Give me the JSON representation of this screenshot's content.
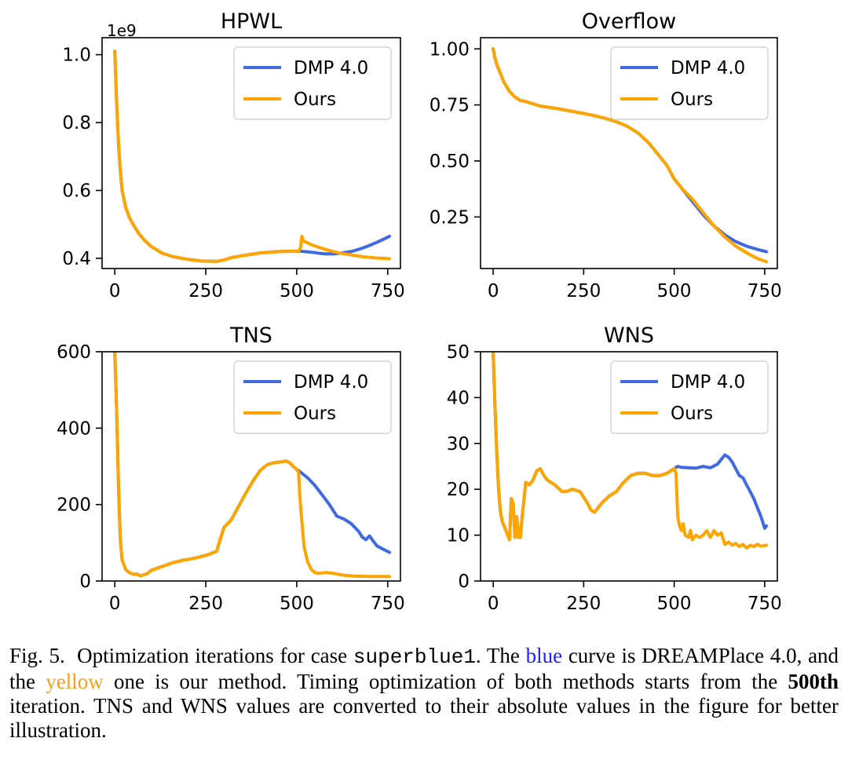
{
  "chart_data": [
    {
      "type": "line",
      "title": "HPWL",
      "xlabel": "",
      "ylabel": "",
      "offset_label": "1e9",
      "xlim": [
        -35,
        785
      ],
      "ylim": [
        0.37,
        1.05
      ],
      "xticks": [
        0,
        250,
        500,
        750
      ],
      "xtick_labels": [
        "0",
        "250",
        "500",
        "750"
      ],
      "yticks": [
        0.4,
        0.6,
        0.8,
        1.0
      ],
      "ytick_labels": [
        "0.4",
        "0.6",
        "0.8",
        "1.0"
      ],
      "legend": "top-right",
      "series": [
        {
          "name": "DMP 4.0",
          "color": "#4169e1",
          "x": [
            0,
            5,
            10,
            15,
            20,
            30,
            40,
            50,
            65,
            80,
            100,
            130,
            160,
            200,
            240,
            280,
            300,
            320,
            350,
            400,
            450,
            500,
            510,
            540,
            560,
            580,
            600,
            620,
            650,
            680,
            700,
            720,
            740,
            755
          ],
          "y": [
            1.01,
            0.86,
            0.74,
            0.66,
            0.6,
            0.55,
            0.52,
            0.5,
            0.475,
            0.455,
            0.435,
            0.415,
            0.405,
            0.397,
            0.392,
            0.391,
            0.395,
            0.402,
            0.408,
            0.416,
            0.42,
            0.421,
            0.421,
            0.418,
            0.415,
            0.413,
            0.413,
            0.415,
            0.42,
            0.43,
            0.438,
            0.447,
            0.457,
            0.465
          ]
        },
        {
          "name": "Ours",
          "color": "#ffa500",
          "x": [
            0,
            5,
            10,
            15,
            20,
            30,
            40,
            50,
            65,
            80,
            100,
            130,
            160,
            200,
            240,
            280,
            300,
            320,
            350,
            400,
            450,
            500,
            505,
            510,
            514,
            518,
            525,
            540,
            560,
            580,
            600,
            620,
            650,
            680,
            700,
            720,
            740,
            755
          ],
          "y": [
            1.01,
            0.86,
            0.74,
            0.66,
            0.6,
            0.55,
            0.52,
            0.5,
            0.475,
            0.455,
            0.435,
            0.415,
            0.405,
            0.397,
            0.392,
            0.391,
            0.395,
            0.402,
            0.408,
            0.416,
            0.42,
            0.421,
            0.42,
            0.43,
            0.465,
            0.452,
            0.448,
            0.44,
            0.433,
            0.426,
            0.42,
            0.415,
            0.41,
            0.405,
            0.403,
            0.401,
            0.4,
            0.399
          ]
        }
      ]
    },
    {
      "type": "line",
      "title": "Overflow",
      "xlabel": "",
      "ylabel": "",
      "xlim": [
        -35,
        785
      ],
      "ylim": [
        0.02,
        1.05
      ],
      "xticks": [
        0,
        250,
        500,
        750
      ],
      "xtick_labels": [
        "0",
        "250",
        "500",
        "750"
      ],
      "yticks": [
        0.25,
        0.5,
        0.75,
        1.0
      ],
      "ytick_labels": [
        "0.25",
        "0.50",
        "0.75",
        "1.00"
      ],
      "legend": "top-right",
      "series": [
        {
          "name": "DMP 4.0",
          "color": "#4169e1",
          "x": [
            0,
            5,
            10,
            20,
            30,
            45,
            60,
            75,
            90,
            110,
            130,
            150,
            180,
            210,
            250,
            280,
            310,
            340,
            370,
            400,
            430,
            460,
            480,
            500,
            520,
            550,
            580,
            610,
            640,
            670,
            700,
            730,
            755
          ],
          "y": [
            1.0,
            0.96,
            0.93,
            0.89,
            0.85,
            0.81,
            0.785,
            0.77,
            0.765,
            0.755,
            0.745,
            0.74,
            0.733,
            0.724,
            0.712,
            0.702,
            0.69,
            0.675,
            0.655,
            0.625,
            0.58,
            0.52,
            0.48,
            0.42,
            0.38,
            0.32,
            0.26,
            0.21,
            0.17,
            0.14,
            0.12,
            0.105,
            0.095
          ]
        },
        {
          "name": "Ours",
          "color": "#ffa500",
          "x": [
            0,
            5,
            10,
            20,
            30,
            45,
            60,
            75,
            90,
            110,
            130,
            150,
            180,
            210,
            250,
            280,
            310,
            340,
            370,
            400,
            430,
            460,
            480,
            500,
            520,
            550,
            580,
            610,
            640,
            670,
            700,
            730,
            755
          ],
          "y": [
            1.0,
            0.96,
            0.93,
            0.89,
            0.85,
            0.81,
            0.785,
            0.77,
            0.765,
            0.755,
            0.745,
            0.74,
            0.733,
            0.724,
            0.712,
            0.702,
            0.69,
            0.675,
            0.655,
            0.625,
            0.58,
            0.52,
            0.48,
            0.42,
            0.38,
            0.33,
            0.27,
            0.21,
            0.16,
            0.12,
            0.09,
            0.065,
            0.05
          ]
        }
      ]
    },
    {
      "type": "line",
      "title": "TNS",
      "xlabel": "",
      "ylabel": "",
      "xlim": [
        -35,
        785
      ],
      "ylim": [
        0,
        600
      ],
      "xticks": [
        0,
        250,
        500,
        750
      ],
      "xtick_labels": [
        "0",
        "250",
        "500",
        "750"
      ],
      "yticks": [
        0,
        200,
        400,
        600
      ],
      "ytick_labels": [
        "0",
        "200",
        "400",
        "600"
      ],
      "legend": "top-right",
      "series": [
        {
          "name": "DMP 4.0",
          "color": "#4169e1",
          "x": [
            0,
            5,
            10,
            15,
            20,
            30,
            40,
            50,
            60,
            70,
            80,
            90,
            100,
            130,
            160,
            190,
            200,
            230,
            260,
            280,
            290,
            300,
            320,
            340,
            360,
            380,
            400,
            420,
            440,
            460,
            470,
            480,
            490,
            500,
            510,
            530,
            550,
            570,
            590,
            610,
            630,
            650,
            670,
            680,
            690,
            700,
            710,
            720,
            740,
            755
          ],
          "y": [
            600,
            450,
            250,
            110,
            55,
            30,
            22,
            18,
            18,
            14,
            16,
            20,
            28,
            38,
            48,
            55,
            56,
            62,
            70,
            78,
            110,
            140,
            160,
            195,
            230,
            262,
            290,
            305,
            310,
            312,
            314,
            310,
            300,
            292,
            285,
            270,
            250,
            225,
            200,
            170,
            162,
            150,
            130,
            115,
            108,
            118,
            105,
            92,
            82,
            75
          ]
        },
        {
          "name": "Ours",
          "color": "#ffa500",
          "x": [
            0,
            5,
            10,
            15,
            20,
            30,
            40,
            50,
            60,
            70,
            80,
            90,
            100,
            130,
            160,
            190,
            200,
            230,
            260,
            280,
            290,
            300,
            320,
            340,
            360,
            380,
            400,
            420,
            440,
            460,
            470,
            480,
            490,
            500,
            505,
            510,
            520,
            530,
            540,
            550,
            560,
            580,
            600,
            630,
            660,
            700,
            755
          ],
          "y": [
            600,
            450,
            250,
            110,
            55,
            30,
            22,
            18,
            18,
            14,
            16,
            20,
            28,
            38,
            48,
            55,
            56,
            62,
            70,
            78,
            110,
            140,
            160,
            195,
            230,
            262,
            290,
            305,
            310,
            312,
            314,
            310,
            300,
            292,
            285,
            200,
            90,
            50,
            30,
            22,
            20,
            22,
            20,
            15,
            13,
            12,
            12
          ]
        }
      ]
    },
    {
      "type": "line",
      "title": "WNS",
      "xlabel": "",
      "ylabel": "",
      "xlim": [
        -35,
        785
      ],
      "ylim": [
        0,
        50
      ],
      "xticks": [
        0,
        250,
        500,
        750
      ],
      "xtick_labels": [
        "0",
        "250",
        "500",
        "750"
      ],
      "yticks": [
        0,
        10,
        20,
        30,
        40,
        50
      ],
      "ytick_labels": [
        "0",
        "10",
        "20",
        "30",
        "40",
        "50"
      ],
      "legend": "top-right",
      "series": [
        {
          "name": "DMP 4.0",
          "color": "#4169e1",
          "x": [
            0,
            5,
            10,
            15,
            20,
            25,
            30,
            35,
            40,
            45,
            50,
            55,
            60,
            65,
            70,
            75,
            80,
            90,
            100,
            110,
            120,
            130,
            140,
            150,
            170,
            190,
            200,
            220,
            240,
            260,
            270,
            280,
            290,
            300,
            320,
            340,
            360,
            380,
            400,
            420,
            440,
            460,
            480,
            490,
            500,
            510,
            520,
            540,
            560,
            580,
            600,
            620,
            640,
            650,
            660,
            670,
            680,
            690,
            700,
            710,
            720,
            730,
            740,
            750,
            755
          ],
          "y": [
            50,
            38,
            28,
            20,
            15,
            13,
            12,
            11,
            10,
            9,
            18,
            17,
            9.5,
            14,
            9.5,
            9.5,
            14,
            21.5,
            21,
            22,
            24,
            24.5,
            23,
            22,
            21,
            19.5,
            19.5,
            20,
            19.5,
            17,
            15.5,
            15,
            16,
            17,
            18.5,
            19.5,
            21.5,
            23,
            23.5,
            23.5,
            23,
            23,
            23.5,
            24,
            24.5,
            25,
            24.8,
            24.7,
            24.6,
            25,
            24.7,
            25.5,
            27.5,
            27,
            26,
            24.5,
            23,
            22.5,
            21,
            19.5,
            18,
            16,
            14,
            11.5,
            12
          ]
        },
        {
          "name": "Ours",
          "color": "#ffa500",
          "x": [
            0,
            5,
            10,
            15,
            20,
            25,
            30,
            35,
            40,
            45,
            50,
            55,
            60,
            65,
            70,
            75,
            80,
            90,
            100,
            110,
            120,
            130,
            140,
            150,
            170,
            190,
            200,
            220,
            240,
            260,
            270,
            280,
            290,
            300,
            320,
            340,
            360,
            380,
            400,
            420,
            440,
            460,
            480,
            490,
            500,
            505,
            510,
            515,
            520,
            525,
            530,
            540,
            545,
            550,
            560,
            570,
            580,
            590,
            600,
            610,
            620,
            630,
            640,
            650,
            660,
            670,
            680,
            690,
            700,
            710,
            720,
            730,
            740,
            755
          ],
          "y": [
            50,
            38,
            28,
            20,
            15,
            13,
            12,
            11,
            10,
            9,
            18,
            17,
            9.5,
            14,
            9.5,
            9.5,
            14,
            21.5,
            21,
            22,
            24,
            24.5,
            23,
            22,
            21,
            19.5,
            19.5,
            20,
            19.5,
            17,
            15.5,
            15,
            16,
            17,
            18.5,
            19.5,
            21.5,
            23,
            23.5,
            23.5,
            23,
            23,
            23.5,
            24,
            24.5,
            23.5,
            14,
            12,
            11,
            12.5,
            10,
            9.5,
            11,
            9,
            10,
            9.5,
            10,
            11,
            9.5,
            11,
            10,
            10.5,
            8,
            8.5,
            7.8,
            8.2,
            7.5,
            8,
            7.2,
            7.8,
            7.5,
            8,
            7.6,
            7.8
          ]
        }
      ]
    }
  ],
  "caption": {
    "fig_label": "Fig. 5.",
    "part1": "Optimization iterations for case",
    "case_name": "superblue1",
    "part2": ". The",
    "blue_word": "blue",
    "part3": "curve is DREAMPlace 4.0, and the",
    "yellow_word": "yellow",
    "part4": "one is our method. Timing optimization of both methods starts from the",
    "bold_word": "500th",
    "part5": "iteration. TNS and WNS values are converted to their absolute values in the figure for better illustration."
  }
}
